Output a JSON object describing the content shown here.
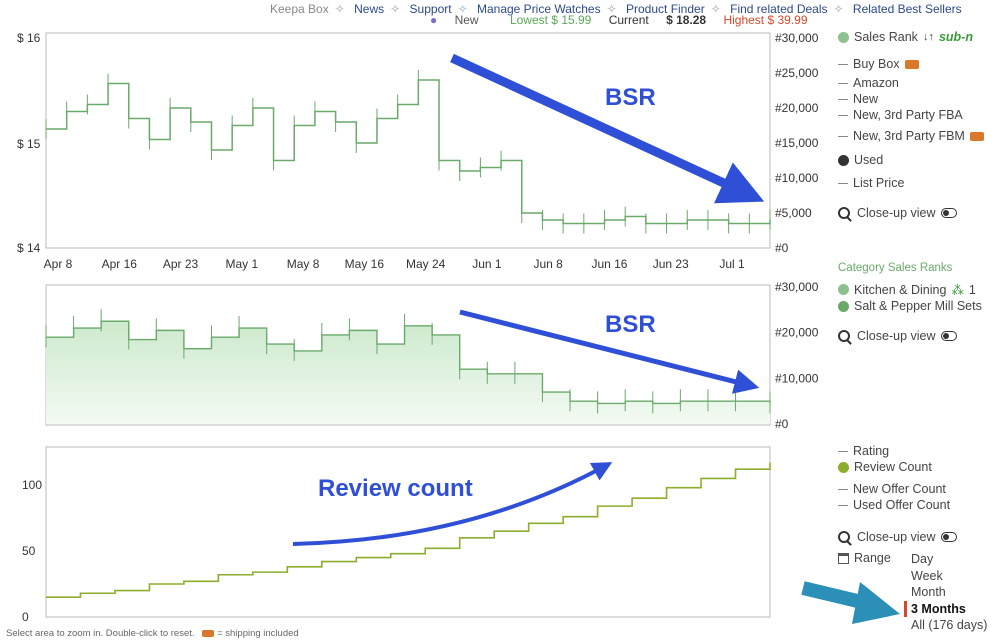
{
  "nav": {
    "keepa_box": "Keepa Box",
    "news": "News",
    "support": "Support",
    "price_watches": "Manage Price Watches",
    "product_finder": "Product Finder",
    "related_deals": "Find related Deals",
    "related_sellers": "Related Best Sellers"
  },
  "prices": {
    "new": "New",
    "lowest": "Lowest $ 15.99",
    "current_label": "Current",
    "current": "$ 18.28",
    "highest": "Highest $ 39.99"
  },
  "legend1": {
    "sales_rank": "Sales Rank",
    "sales_rank_suffix": "sub-n",
    "buy_box": "Buy Box",
    "amazon": "Amazon",
    "new": "New",
    "new_fba": "New, 3rd Party FBA",
    "new_fbm": "New, 3rd Party FBM",
    "used": "Used",
    "list_price": "List Price",
    "closeup": "Close-up view"
  },
  "legend2": {
    "heading": "Category Sales Ranks",
    "cat1": "Kitchen & Dining",
    "cat1_rank": "1",
    "cat2": "Salt & Pepper Mill Sets",
    "closeup": "Close-up view"
  },
  "legend3": {
    "rating": "Rating",
    "review_count": "Review Count",
    "new_offer": "New Offer Count",
    "used_offer": "Used Offer Count",
    "closeup": "Close-up view",
    "range_label": "Range",
    "range_options": [
      "Day",
      "Week",
      "Month",
      "3 Months",
      "All (176 days)"
    ]
  },
  "footer": {
    "hint": "Select area to zoom in. Double-click to reset.",
    "shipping": "= shipping included"
  },
  "colors": {
    "rank_green": "#6aaa6a",
    "rank_fill": "#d9efd9",
    "review_green": "#8cae2c",
    "annotation_blue": "#2f4fd6",
    "callout_teal": "#2b8fb8",
    "lowest": "#5aa85a",
    "highest": "#d9472a"
  },
  "chart_data": [
    {
      "type": "line",
      "name": "sales-rank-and-price",
      "x_ticks": [
        "Apr 8",
        "Apr 16",
        "Apr 23",
        "May 1",
        "May 8",
        "May 16",
        "May 24",
        "Jun 1",
        "Jun 8",
        "Jun 16",
        "Jun 23",
        "Jul 1"
      ],
      "y_left_ticks": [
        "$ 14",
        "$ 15",
        "$ 16"
      ],
      "ylim_left": [
        14,
        16
      ],
      "y_right_ticks": [
        "#0",
        "#5,000",
        "#10,000",
        "#15,000",
        "#20,000",
        "#25,000",
        "#30,000"
      ],
      "ylim_right": [
        0,
        30000
      ],
      "series": [
        {
          "x_days": [
            0,
            3,
            6,
            9,
            12,
            15,
            18,
            21,
            24,
            27,
            30,
            33,
            36,
            39,
            42,
            45,
            48,
            51,
            54,
            57,
            60,
            63,
            66,
            69,
            72,
            75,
            78,
            81,
            84,
            87,
            90,
            93,
            96,
            99,
            102,
            105
          ],
          "values": [
            17000,
            19500,
            20500,
            23500,
            18500,
            15500,
            20000,
            18000,
            14000,
            17500,
            20000,
            12500,
            17500,
            19500,
            18000,
            15000,
            18500,
            20500,
            24000,
            12500,
            11000,
            11500,
            12500,
            5000,
            4000,
            3500,
            3500,
            4000,
            4500,
            3500,
            3500,
            4000,
            4000,
            3500,
            3500,
            4000
          ]
        }
      ],
      "annotation": "BSR"
    },
    {
      "type": "area",
      "name": "category-sales-ranks",
      "x_ticks": [],
      "y_right_ticks": [
        "#0",
        "#10,000",
        "#20,000",
        "#30,000"
      ],
      "ylim_right": [
        0,
        30000
      ],
      "series": [
        {
          "x_days": [
            0,
            4,
            8,
            12,
            16,
            20,
            24,
            28,
            32,
            36,
            40,
            44,
            48,
            52,
            56,
            60,
            64,
            68,
            72,
            76,
            80,
            84,
            88,
            92,
            96,
            100,
            105
          ],
          "values": [
            19000,
            21000,
            22500,
            18500,
            20500,
            16500,
            19000,
            21000,
            17500,
            16000,
            19500,
            20500,
            17500,
            21500,
            19500,
            12000,
            11000,
            11000,
            7000,
            5000,
            4500,
            5000,
            4500,
            5000,
            5000,
            5000,
            4500
          ]
        }
      ],
      "annotation": "BSR"
    },
    {
      "type": "line",
      "name": "review-count",
      "x_ticks": [],
      "y_left_ticks": [
        "0",
        "50",
        "100"
      ],
      "ylim_left": [
        0,
        125
      ],
      "series": [
        {
          "x_days": [
            0,
            5,
            10,
            15,
            20,
            25,
            30,
            35,
            40,
            45,
            50,
            55,
            60,
            65,
            70,
            75,
            80,
            85,
            90,
            95,
            100,
            105
          ],
          "values": [
            15,
            18,
            20,
            25,
            27,
            32,
            34,
            38,
            42,
            45,
            48,
            52,
            60,
            65,
            71,
            76,
            84,
            90,
            98,
            105,
            112,
            117
          ]
        }
      ],
      "annotation": "Review count"
    }
  ]
}
